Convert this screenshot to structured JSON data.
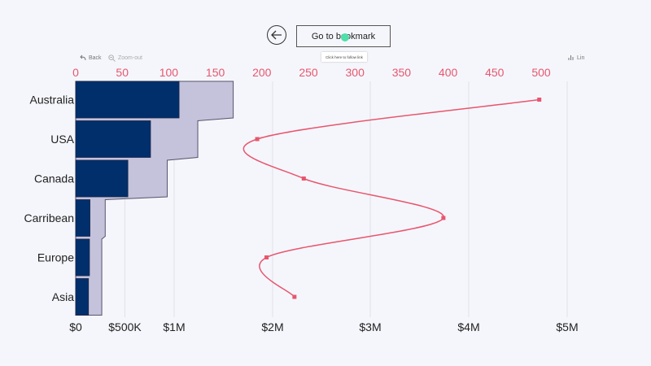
{
  "header": {
    "bookmark_label": "Go to bookmark",
    "tooltip_text": "Click here to follow link",
    "back_label": "Back",
    "zoom_label": "Zoom-out",
    "lin_label": "Lin"
  },
  "colors": {
    "bar_dark": "#002f6c",
    "bar_light": "#c5c2dc",
    "line": "#e8566e",
    "top_axis": "#e8566e",
    "cursor": "#4de0a8"
  },
  "icons": [
    "back-arrow-icon",
    "undo-arrow-icon",
    "zoom-out-icon"
  ],
  "chart_data": {
    "type": "bar",
    "orientation": "horizontal",
    "categories": [
      "Australia",
      "USA",
      "Canada",
      "Carribean",
      "Europe",
      "Asia"
    ],
    "series": [
      {
        "values": [
          1050000,
          760000,
          530000,
          145000,
          140000,
          130000
        ]
      },
      {
        "values": [
          550000,
          480000,
          400000,
          155000,
          125000,
          135000
        ]
      },
      {
        "values": [
          498,
          195,
          245,
          395,
          205,
          235
        ]
      }
    ],
    "x_axis_bottom": {
      "tick_labels": [
        "$0",
        "$500K",
        "$1M",
        "$2M",
        "$3M",
        "$4M",
        "$5M"
      ],
      "tick_values": [
        0,
        500000,
        1000000,
        2000000,
        3000000,
        4000000,
        5000000
      ]
    },
    "x_axis_top": {
      "tick_labels": [
        "0",
        "50",
        "100",
        "150",
        "200",
        "250",
        "300",
        "350",
        "400",
        "450",
        "500"
      ],
      "range": [
        0,
        500
      ]
    },
    "grid": true
  }
}
